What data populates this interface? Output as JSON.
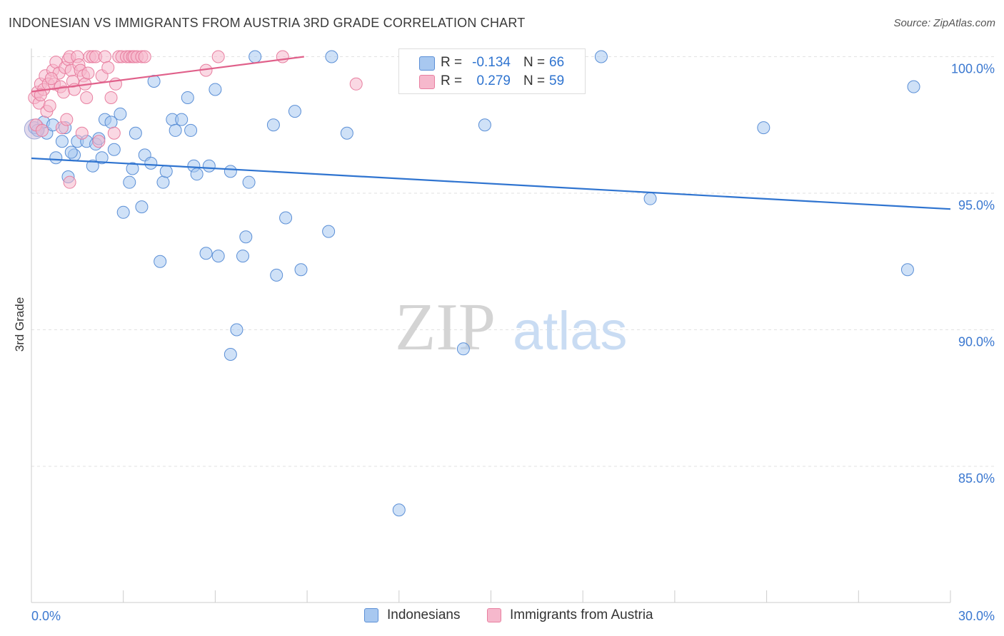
{
  "title": "INDONESIAN VS IMMIGRANTS FROM AUSTRIA 3RD GRADE CORRELATION CHART",
  "source": "Source: ZipAtlas.com",
  "watermark": {
    "zip": "ZIP",
    "atlas": "atlas"
  },
  "colors": {
    "blue_fill": "#a8c8f0",
    "blue_stroke": "#5b8fd6",
    "blue_line": "#2f74d0",
    "pink_fill": "#f6b8cc",
    "pink_stroke": "#e87fa0",
    "pink_line": "#e0608a",
    "axis_text": "#3b78d0",
    "grid": "#e2e2e2"
  },
  "stats": [
    {
      "series": "Indonesians",
      "r_label": "R =",
      "r_value": "-0.134",
      "n_label": "N =",
      "n_value": "66"
    },
    {
      "series": "Immigrants from Austria",
      "r_label": "R =",
      "r_value": "0.279",
      "n_label": "N =",
      "n_value": "59"
    }
  ],
  "legend": [
    {
      "label": "Indonesians",
      "color": "#a8c8f0"
    },
    {
      "label": "Immigrants from Austria",
      "color": "#f6b8cc"
    }
  ],
  "chart_data": {
    "type": "scatter",
    "title": "INDONESIAN VS IMMIGRANTS FROM AUSTRIA 3RD GRADE CORRELATION CHART",
    "xlabel": "",
    "ylabel": "3rd Grade",
    "xlim": [
      0,
      30
    ],
    "ylim": [
      80,
      100.8
    ],
    "x_tick_labels": [
      {
        "value": 0,
        "label": "0.0%"
      },
      {
        "value": 30,
        "label": "30.0%"
      }
    ],
    "y_tick_labels": [
      {
        "value": 100,
        "label": "100.0%"
      },
      {
        "value": 95,
        "label": "95.0%"
      },
      {
        "value": 90,
        "label": "90.0%"
      },
      {
        "value": 85,
        "label": "85.0%"
      }
    ],
    "legend_position": "bottom",
    "series": [
      {
        "name": "Indonesians",
        "color": "#a8c8f0",
        "trend": {
          "x": [
            0,
            30
          ],
          "y": [
            96.28,
            94.42
          ]
        },
        "points": [
          [
            0.1,
            97.4
          ],
          [
            0.4,
            97.6
          ],
          [
            0.5,
            97.2
          ],
          [
            0.7,
            97.5
          ],
          [
            0.8,
            96.3
          ],
          [
            1.0,
            96.9
          ],
          [
            1.1,
            97.4
          ],
          [
            1.2,
            95.6
          ],
          [
            1.4,
            96.4
          ],
          [
            1.5,
            96.9
          ],
          [
            1.8,
            96.9
          ],
          [
            2.0,
            96.0
          ],
          [
            2.1,
            96.8
          ],
          [
            2.3,
            96.3
          ],
          [
            2.4,
            97.7
          ],
          [
            2.6,
            97.6
          ],
          [
            2.7,
            96.6
          ],
          [
            2.9,
            97.9
          ],
          [
            3.0,
            94.3
          ],
          [
            3.2,
            95.4
          ],
          [
            3.3,
            95.9
          ],
          [
            3.4,
            97.2
          ],
          [
            3.6,
            94.5
          ],
          [
            3.7,
            96.4
          ],
          [
            3.9,
            96.1
          ],
          [
            4.0,
            99.1
          ],
          [
            4.2,
            92.5
          ],
          [
            4.3,
            95.4
          ],
          [
            4.4,
            95.8
          ],
          [
            4.6,
            97.7
          ],
          [
            4.7,
            97.3
          ],
          [
            4.9,
            97.7
          ],
          [
            5.1,
            98.5
          ],
          [
            5.2,
            97.3
          ],
          [
            5.3,
            96.0
          ],
          [
            5.4,
            95.7
          ],
          [
            5.7,
            92.8
          ],
          [
            5.8,
            96.0
          ],
          [
            6.0,
            98.8
          ],
          [
            6.1,
            92.7
          ],
          [
            6.5,
            95.8
          ],
          [
            6.7,
            90.0
          ],
          [
            6.9,
            92.7
          ],
          [
            7.0,
            93.4
          ],
          [
            7.1,
            95.4
          ],
          [
            7.3,
            100.0
          ],
          [
            7.9,
            97.5
          ],
          [
            8.0,
            92.0
          ],
          [
            8.3,
            94.1
          ],
          [
            8.6,
            98.0
          ],
          [
            8.8,
            92.2
          ],
          [
            9.7,
            93.6
          ],
          [
            9.8,
            100.0
          ],
          [
            10.3,
            97.2
          ],
          [
            6.5,
            89.1
          ],
          [
            12.0,
            83.4
          ],
          [
            14.1,
            89.3
          ],
          [
            14.8,
            97.5
          ],
          [
            18.6,
            100.0
          ],
          [
            20.2,
            94.8
          ],
          [
            23.9,
            97.4
          ],
          [
            28.6,
            92.2
          ],
          [
            28.8,
            98.9
          ],
          [
            1.3,
            96.5
          ],
          [
            2.2,
            97.0
          ],
          [
            0.2,
            97.3
          ]
        ]
      },
      {
        "name": "Immigrants from Austria",
        "color": "#f6b8cc",
        "trend": {
          "x": [
            0,
            8.9
          ],
          "y": [
            98.72,
            100.0
          ]
        },
        "points": [
          [
            0.1,
            98.5
          ],
          [
            0.15,
            97.5
          ],
          [
            0.2,
            98.7
          ],
          [
            0.25,
            98.3
          ],
          [
            0.3,
            99.0
          ],
          [
            0.35,
            97.3
          ],
          [
            0.4,
            98.8
          ],
          [
            0.45,
            99.3
          ],
          [
            0.5,
            98.0
          ],
          [
            0.55,
            99.0
          ],
          [
            0.6,
            98.2
          ],
          [
            0.7,
            99.5
          ],
          [
            0.75,
            99.0
          ],
          [
            0.8,
            99.8
          ],
          [
            0.9,
            99.4
          ],
          [
            0.95,
            98.9
          ],
          [
            1.0,
            97.4
          ],
          [
            1.05,
            98.7
          ],
          [
            1.1,
            99.6
          ],
          [
            1.15,
            97.7
          ],
          [
            1.2,
            99.9
          ],
          [
            1.25,
            100.0
          ],
          [
            1.3,
            99.5
          ],
          [
            1.35,
            99.1
          ],
          [
            1.4,
            98.8
          ],
          [
            1.5,
            100.0
          ],
          [
            1.55,
            99.7
          ],
          [
            1.6,
            99.5
          ],
          [
            1.65,
            97.2
          ],
          [
            1.7,
            99.3
          ],
          [
            1.75,
            99.0
          ],
          [
            1.8,
            98.5
          ],
          [
            1.85,
            99.4
          ],
          [
            1.9,
            100.0
          ],
          [
            2.0,
            100.0
          ],
          [
            2.1,
            100.0
          ],
          [
            2.2,
            96.9
          ],
          [
            2.3,
            99.3
          ],
          [
            2.4,
            100.0
          ],
          [
            2.5,
            99.6
          ],
          [
            2.6,
            98.5
          ],
          [
            2.7,
            97.2
          ],
          [
            2.75,
            99.0
          ],
          [
            2.85,
            100.0
          ],
          [
            2.95,
            100.0
          ],
          [
            3.1,
            100.0
          ],
          [
            3.2,
            100.0
          ],
          [
            3.3,
            100.0
          ],
          [
            3.35,
            100.0
          ],
          [
            3.45,
            100.0
          ],
          [
            3.6,
            100.0
          ],
          [
            3.7,
            100.0
          ],
          [
            5.7,
            99.5
          ],
          [
            6.1,
            100.0
          ],
          [
            8.2,
            100.0
          ],
          [
            10.6,
            99.0
          ],
          [
            1.25,
            95.4
          ],
          [
            0.3,
            98.6
          ],
          [
            0.65,
            99.2
          ]
        ]
      }
    ]
  }
}
